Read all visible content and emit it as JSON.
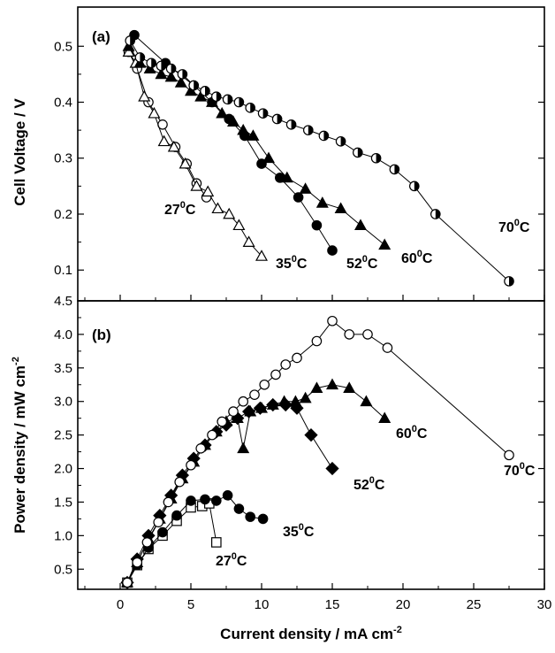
{
  "chart_data": [
    {
      "panel": "(a)",
      "type": "scatter",
      "ylabel": "Cell  Voltage / V",
      "xlim": [
        -3,
        30
      ],
      "ylim": [
        0.045,
        0.57
      ],
      "yticks": [
        "0.1",
        "0.2",
        "0.3",
        "0.4",
        "0.5"
      ],
      "series": [
        {
          "name": "27°C",
          "marker": "circle-open",
          "x": [
            0.6,
            1.2,
            2.0,
            3.0,
            3.9,
            4.7,
            5.4,
            6.1
          ],
          "y": [
            0.49,
            0.46,
            0.4,
            0.36,
            0.32,
            0.29,
            0.255,
            0.23
          ]
        },
        {
          "name": "35°C",
          "marker": "triangle-open",
          "x": [
            0.6,
            1.1,
            1.7,
            2.4,
            3.1,
            3.8,
            4.6,
            5.4,
            6.2,
            6.9,
            7.7,
            8.4,
            9.1,
            10.0
          ],
          "y": [
            0.49,
            0.47,
            0.41,
            0.38,
            0.33,
            0.32,
            0.29,
            0.25,
            0.24,
            0.21,
            0.2,
            0.18,
            0.15,
            0.125
          ]
        },
        {
          "name": "52°C",
          "marker": "circle-filled",
          "x": [
            1.0,
            3.2,
            5.2,
            6.5,
            7.7,
            8.8,
            10.0,
            11.3,
            12.6,
            13.9,
            15.0
          ],
          "y": [
            0.52,
            0.47,
            0.43,
            0.4,
            0.37,
            0.34,
            0.29,
            0.265,
            0.23,
            0.18,
            0.135
          ]
        },
        {
          "name": "60°C",
          "marker": "triangle-filled",
          "x": [
            0.6,
            1.4,
            2.1,
            2.9,
            3.6,
            4.3,
            5.0,
            5.7,
            6.5,
            7.2,
            8.0,
            8.7,
            9.4,
            10.5,
            11.8,
            13.1,
            14.3,
            15.6,
            17.0,
            18.7
          ],
          "y": [
            0.5,
            0.47,
            0.46,
            0.45,
            0.445,
            0.435,
            0.42,
            0.41,
            0.4,
            0.38,
            0.365,
            0.35,
            0.34,
            0.3,
            0.265,
            0.245,
            0.22,
            0.21,
            0.18,
            0.145
          ]
        },
        {
          "name": "70°C",
          "marker": "circle-half",
          "x": [
            0.7,
            1.4,
            2.2,
            2.9,
            3.6,
            4.4,
            5.2,
            6.0,
            6.8,
            7.6,
            8.4,
            9.2,
            10.1,
            11.1,
            12.1,
            13.3,
            14.4,
            15.6,
            16.8,
            18.1,
            19.4,
            20.8,
            22.3,
            27.5
          ],
          "y": [
            0.51,
            0.48,
            0.47,
            0.465,
            0.46,
            0.45,
            0.43,
            0.42,
            0.41,
            0.405,
            0.4,
            0.39,
            0.38,
            0.37,
            0.36,
            0.35,
            0.34,
            0.33,
            0.31,
            0.3,
            0.28,
            0.25,
            0.2,
            0.08
          ]
        }
      ],
      "annotations": [
        {
          "text": "27",
          "sup": "0",
          "unit": "C",
          "series": "27°C"
        },
        {
          "text": "35",
          "sup": "0",
          "unit": "C",
          "series": "35°C"
        },
        {
          "text": "52",
          "sup": "0",
          "unit": "C",
          "series": "52°C"
        },
        {
          "text": "60",
          "sup": "0",
          "unit": "C",
          "series": "60°C"
        },
        {
          "text": "70",
          "sup": "0",
          "unit": "C",
          "series": "70°C"
        }
      ]
    },
    {
      "panel": "(b)",
      "type": "scatter",
      "xlabel": "Current density / mA cm",
      "xlabel_sup": "-2",
      "ylabel": "Power density / mW cm",
      "ylabel_sup": "-2",
      "xlim": [
        -3,
        30
      ],
      "ylim": [
        0.2,
        4.5
      ],
      "xticks": [
        "0",
        "5",
        "10",
        "15",
        "20",
        "25",
        "30"
      ],
      "yticks": [
        "0.5",
        "1.0",
        "1.5",
        "2.0",
        "2.5",
        "3.0",
        "3.5",
        "4.0",
        "4.5"
      ],
      "series": [
        {
          "name": "27°C",
          "marker": "square-open",
          "x": [
            0.5,
            1.2,
            2.0,
            3.0,
            4.0,
            5.0,
            5.8,
            6.3,
            6.8
          ],
          "y": [
            0.3,
            0.56,
            0.8,
            1.0,
            1.22,
            1.42,
            1.44,
            1.48,
            0.9
          ]
        },
        {
          "name": "35°C",
          "marker": "circle-filled",
          "x": [
            0.5,
            1.2,
            2.0,
            3.0,
            4.0,
            5.0,
            6.0,
            6.8,
            7.6,
            8.4,
            9.2,
            10.1
          ],
          "y": [
            0.3,
            0.56,
            0.82,
            1.05,
            1.3,
            1.52,
            1.54,
            1.52,
            1.6,
            1.4,
            1.28,
            1.25
          ]
        },
        {
          "name": "52°C",
          "marker": "diamond-filled",
          "x": [
            0.5,
            1.2,
            2.0,
            2.8,
            3.6,
            4.4,
            5.2,
            6.0,
            6.8,
            7.5,
            8.3,
            9.1,
            9.9,
            10.8,
            11.7,
            12.5,
            13.5,
            15.0
          ],
          "y": [
            0.3,
            0.65,
            1.0,
            1.3,
            1.6,
            1.9,
            2.15,
            2.35,
            2.55,
            2.65,
            2.75,
            2.85,
            2.9,
            2.95,
            2.95,
            2.9,
            2.5,
            2.0
          ]
        },
        {
          "name": "60°C",
          "marker": "triangle-filled",
          "x": [
            0.5,
            1.2,
            2.0,
            2.8,
            3.6,
            4.4,
            5.2,
            6.0,
            6.8,
            7.5,
            8.3,
            8.7,
            9.2,
            10.0,
            10.8,
            11.6,
            12.4,
            13.1,
            13.9,
            15.0,
            16.2,
            17.4,
            18.7
          ],
          "y": [
            0.3,
            0.6,
            0.95,
            1.25,
            1.55,
            1.85,
            2.1,
            2.35,
            2.55,
            2.7,
            2.75,
            2.3,
            2.85,
            2.9,
            2.95,
            3.0,
            3.0,
            3.05,
            3.2,
            3.25,
            3.2,
            3.0,
            2.75
          ]
        },
        {
          "name": "70°C",
          "marker": "circle-open",
          "x": [
            0.5,
            1.2,
            1.9,
            2.7,
            3.4,
            4.2,
            5.0,
            5.7,
            6.5,
            7.2,
            8.0,
            8.7,
            9.5,
            10.2,
            11.0,
            11.7,
            12.5,
            13.9,
            15.0,
            16.2,
            17.5,
            18.9,
            27.5
          ],
          "y": [
            0.3,
            0.6,
            0.9,
            1.2,
            1.5,
            1.8,
            2.05,
            2.3,
            2.5,
            2.7,
            2.85,
            3.0,
            3.1,
            3.25,
            3.4,
            3.55,
            3.65,
            3.9,
            4.2,
            4.0,
            4.0,
            3.8,
            2.2
          ]
        }
      ],
      "annotations": [
        {
          "text": "27",
          "sup": "0",
          "unit": "C",
          "series": "27°C"
        },
        {
          "text": "35",
          "sup": "0",
          "unit": "C",
          "series": "35°C"
        },
        {
          "text": "52",
          "sup": "0",
          "unit": "C",
          "series": "52°C"
        },
        {
          "text": "60",
          "sup": "0",
          "unit": "C",
          "series": "60°C"
        },
        {
          "text": "70",
          "sup": "0",
          "unit": "C",
          "series": "70°C"
        }
      ]
    }
  ]
}
